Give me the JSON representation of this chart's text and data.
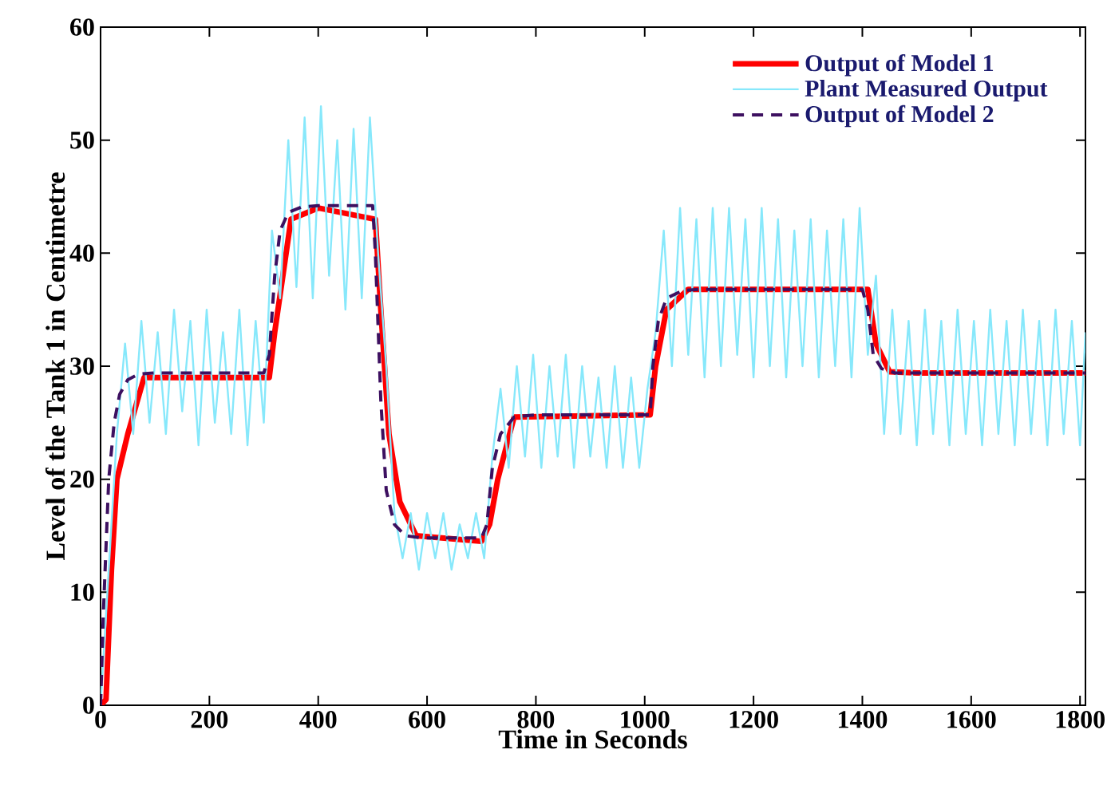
{
  "chart_data": {
    "type": "line",
    "xlabel": "Time in Seconds",
    "ylabel": "Level of the Tank 1 in Centimetre",
    "xlim": [
      0,
      1810
    ],
    "ylim": [
      0,
      60
    ],
    "xticks": [
      0,
      200,
      400,
      600,
      800,
      1000,
      1200,
      1400,
      1600,
      1800
    ],
    "yticks": [
      0,
      10,
      20,
      30,
      40,
      50,
      60
    ],
    "legend": "top right",
    "grid": false,
    "marker": "none",
    "series": [
      {
        "name": "Output of Model 1",
        "color": "#ff0000",
        "line_style": "solid",
        "x": [
          0,
          10,
          20,
          30,
          40,
          50,
          80,
          310,
          320,
          350,
          400,
          505,
          515,
          530,
          550,
          580,
          700,
          715,
          730,
          760,
          1010,
          1020,
          1040,
          1080,
          1410,
          1425,
          1450,
          1500,
          1810
        ],
        "values": [
          0,
          0.5,
          12,
          20,
          22,
          24,
          29,
          29,
          33,
          43,
          44,
          43,
          35,
          24,
          18,
          15,
          14.5,
          16,
          20,
          25.5,
          25.7,
          30,
          35,
          36.8,
          36.8,
          32,
          29.5,
          29.4,
          29.4
        ]
      },
      {
        "name": "Plant Measured Output",
        "color": "#87e8fb",
        "line_style": "solid",
        "x": [
          0,
          15,
          30,
          45,
          60,
          75,
          90,
          105,
          120,
          135,
          150,
          165,
          180,
          195,
          210,
          225,
          240,
          255,
          270,
          285,
          300,
          315,
          330,
          345,
          360,
          375,
          390,
          405,
          420,
          435,
          450,
          465,
          480,
          495,
          510,
          525,
          540,
          555,
          570,
          585,
          600,
          615,
          630,
          645,
          660,
          675,
          690,
          705,
          720,
          735,
          750,
          765,
          780,
          795,
          810,
          825,
          840,
          855,
          870,
          885,
          900,
          915,
          930,
          945,
          960,
          975,
          990,
          1005,
          1020,
          1035,
          1050,
          1065,
          1080,
          1095,
          1110,
          1125,
          1140,
          1155,
          1170,
          1185,
          1200,
          1215,
          1230,
          1245,
          1260,
          1275,
          1290,
          1305,
          1320,
          1335,
          1350,
          1365,
          1380,
          1395,
          1410,
          1425,
          1440,
          1455,
          1470,
          1485,
          1500,
          1515,
          1530,
          1545,
          1560,
          1575,
          1590,
          1605,
          1620,
          1635,
          1650,
          1665,
          1680,
          1695,
          1710,
          1725,
          1740,
          1755,
          1770,
          1785,
          1800,
          1810
        ],
        "values": [
          0,
          12,
          24,
          32,
          24,
          34,
          25,
          33,
          24,
          35,
          26,
          34,
          23,
          35,
          25,
          33,
          24,
          35,
          23,
          34,
          25,
          42,
          36,
          50,
          37,
          52,
          36,
          53,
          38,
          50,
          35,
          51,
          36,
          52,
          40,
          30,
          17,
          13,
          17,
          12,
          17,
          13,
          17,
          12,
          16,
          13,
          17,
          13,
          22,
          28,
          21,
          30,
          22,
          31,
          21,
          30,
          22,
          31,
          21,
          30,
          22,
          29,
          21,
          30,
          21,
          29,
          21,
          28,
          33,
          42,
          30,
          44,
          31,
          43,
          29,
          44,
          30,
          44,
          31,
          43,
          29,
          44,
          30,
          43,
          29,
          42,
          30,
          43,
          29,
          42,
          30,
          43,
          29,
          44,
          31,
          38,
          24,
          35,
          24,
          34,
          23,
          35,
          24,
          34,
          23,
          35,
          24,
          34,
          23,
          35,
          24,
          34,
          23,
          35,
          24,
          34,
          23,
          35,
          24,
          34,
          23,
          33
        ]
      },
      {
        "name": "Output of Model 2",
        "color": "#3d1060",
        "line_style": "dashed",
        "x": [
          0,
          5,
          15,
          25,
          35,
          50,
          70,
          100,
          300,
          310,
          320,
          330,
          345,
          370,
          400,
          500,
          505,
          515,
          525,
          540,
          560,
          590,
          700,
          710,
          720,
          735,
          760,
          800,
          1010,
          1015,
          1025,
          1040,
          1070,
          1100,
          1400,
          1410,
          1420,
          1435,
          1460,
          1500,
          1810
        ],
        "values": [
          0,
          8,
          20,
          25,
          27.5,
          28.8,
          29.3,
          29.4,
          29.4,
          31,
          38,
          42,
          43.6,
          44.1,
          44.2,
          44.2,
          40,
          27,
          19,
          16,
          15,
          14.8,
          14.8,
          16,
          21,
          24,
          25.5,
          25.7,
          25.7,
          30,
          34,
          36,
          36.7,
          36.8,
          36.8,
          35,
          31,
          29.8,
          29.4,
          29.4,
          29.4
        ]
      }
    ]
  }
}
